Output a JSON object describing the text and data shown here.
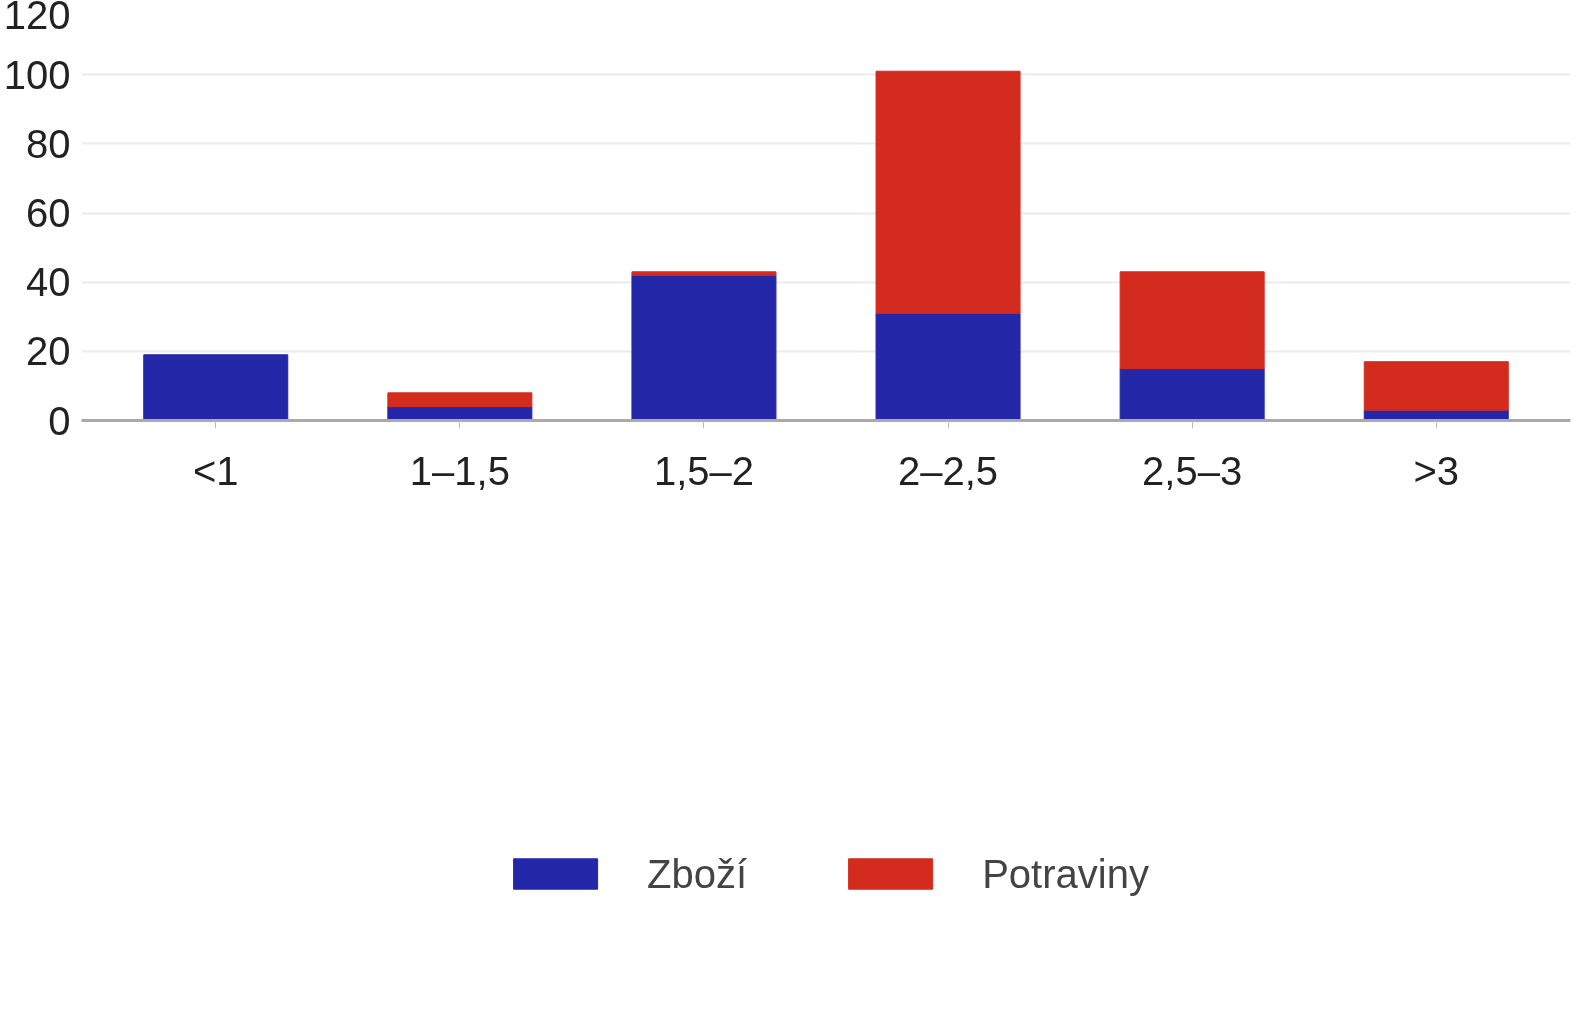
{
  "chart_data": {
    "type": "bar",
    "stacked": true,
    "categories": [
      "<1",
      "1–1,5",
      "1,5–2",
      "2–2,5",
      "2,5–3",
      ">3"
    ],
    "series": [
      {
        "name": "Zboží",
        "color": "#2427a8",
        "values": [
          19,
          4,
          42,
          31,
          15,
          3
        ]
      },
      {
        "name": "Potraviny",
        "color": "#d42b1f",
        "values": [
          0,
          4,
          1,
          70,
          28,
          14
        ]
      }
    ],
    "ylim": [
      0,
      120
    ],
    "yticks": [
      0,
      20,
      40,
      60,
      80,
      100,
      120
    ],
    "grid": "y",
    "legend": "bottom"
  }
}
